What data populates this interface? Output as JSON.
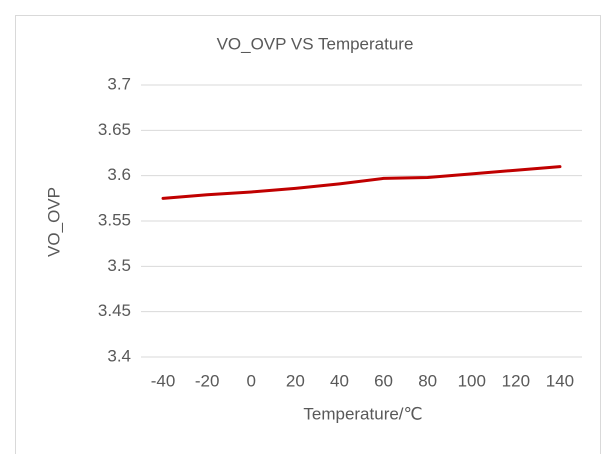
{
  "chart_data": {
    "type": "line",
    "title": "VO_OVP VS Temperature",
    "x_label": "Temperature/℃",
    "y_label": "VO_OVP",
    "categories": [
      -40,
      -20,
      0,
      20,
      40,
      60,
      80,
      100,
      120,
      140
    ],
    "series": [
      {
        "name": "VO_OVP",
        "color": "#c00000",
        "values": [
          3.575,
          3.579,
          3.582,
          3.586,
          3.591,
          3.597,
          3.598,
          3.602,
          3.606,
          3.61
        ]
      }
    ],
    "ylim": [
      3.4,
      3.7
    ],
    "yticks": [
      {
        "value": 3.4,
        "label": "3.4"
      },
      3.45,
      {
        "value": 3.5,
        "label": "3.5"
      },
      3.55,
      {
        "value": 3.6,
        "label": "3.6"
      },
      3.65,
      {
        "value": 3.7,
        "label": "3.7"
      }
    ],
    "grid": true
  }
}
